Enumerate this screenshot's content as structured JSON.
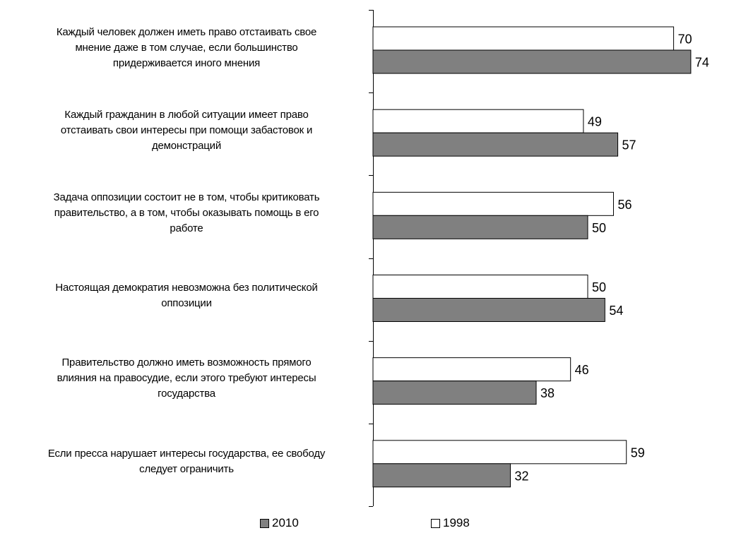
{
  "chart_data": {
    "type": "bar",
    "orientation": "horizontal",
    "categories": [
      "Каждый человек должен иметь право отстаивать свое мнение даже в том случае, если большинство придерживается иного мнения",
      "Каждый гражданин в любой ситуации имеет право отстаивать свои интересы при помощи забастовок и демонстраций",
      "Задача оппозиции состоит не в том, чтобы критиковать правительство, а в том, чтобы оказывать помощь в его работе",
      "Настоящая демократия невозможна без политической оппозиции",
      "Правительство должно иметь возможность прямого влияния на правосудие, если этого требуют интересы государства",
      "Если пресса нарушает интересы государства, ее свободу следует ограничить"
    ],
    "category_lines": [
      [
        "Каждый человек должен иметь право отстаивать свое",
        "мнение даже в том случае, если большинство",
        "придерживается иного мнения"
      ],
      [
        "Каждый гражданин в любой ситуации имеет право",
        "отстаивать свои интересы при помощи забастовок и",
        "демонстраций"
      ],
      [
        "Задача оппозиции состоит не в том, чтобы критиковать",
        "правительство, а в том, чтобы оказывать помощь в его",
        "работе"
      ],
      [
        "Настоящая демократия невозможна без политической",
        "оппозиции"
      ],
      [
        "Правительство должно иметь возможность прямого",
        "влияния на правосудие, если этого требуют интересы",
        "государства"
      ],
      [
        "Если пресса нарушает интересы государства, ее свободу",
        "следует ограничить"
      ]
    ],
    "series": [
      {
        "name": "1998",
        "color": "#ffffff",
        "values": [
          70,
          49,
          56,
          50,
          46,
          59
        ]
      },
      {
        "name": "2010",
        "color": "#808080",
        "values": [
          74,
          57,
          50,
          54,
          38,
          32
        ]
      }
    ],
    "xlim": [
      0,
      75
    ],
    "grid": false,
    "legend_position": "bottom"
  },
  "legend": [
    {
      "label": "2010",
      "color": "#808080"
    },
    {
      "label": "1998",
      "color": "#ffffff"
    }
  ]
}
